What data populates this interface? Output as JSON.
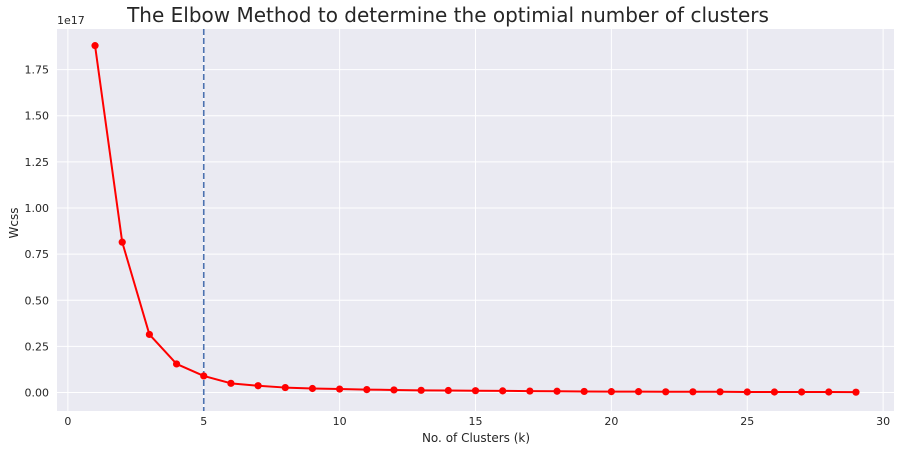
{
  "chart_data": {
    "type": "line",
    "title": "The Elbow Method to determine the optimial number of clusters",
    "xlabel": "No. of Clusters (k)",
    "ylabel": "Wcss",
    "y_offset_label": "1e17",
    "xlim": [
      -0.4,
      30.4
    ],
    "ylim": [
      -0.1,
      1.97
    ],
    "x_ticks": [
      0,
      5,
      10,
      15,
      20,
      25,
      30
    ],
    "x_tick_labels": [
      "0",
      "5",
      "10",
      "15",
      "20",
      "25",
      "30"
    ],
    "y_ticks": [
      0.0,
      0.25,
      0.5,
      0.75,
      1.0,
      1.25,
      1.5,
      1.75
    ],
    "y_tick_labels": [
      "0.00",
      "0.25",
      "0.50",
      "0.75",
      "1.00",
      "1.25",
      "1.50",
      "1.75"
    ],
    "grid": true,
    "series": [
      {
        "color": "#ff0000",
        "x": [
          1,
          2,
          3,
          4,
          5,
          6,
          7,
          8,
          9,
          10,
          11,
          12,
          13,
          14,
          15,
          16,
          17,
          18,
          19,
          20,
          21,
          22,
          23,
          24,
          25,
          26,
          27,
          28,
          29
        ],
        "y": [
          1.88,
          0.815,
          0.315,
          0.155,
          0.09,
          0.05,
          0.037,
          0.027,
          0.022,
          0.019,
          0.016,
          0.014,
          0.012,
          0.011,
          0.01,
          0.009,
          0.008,
          0.007,
          0.006,
          0.005,
          0.005,
          0.004,
          0.004,
          0.004,
          0.003,
          0.003,
          0.003,
          0.003,
          0.002
        ]
      }
    ],
    "vline": {
      "x": 5,
      "color": "#4c72b0",
      "style": "dashed"
    },
    "background_color": "#eaeaf2",
    "grid_color": "#ffffff"
  }
}
